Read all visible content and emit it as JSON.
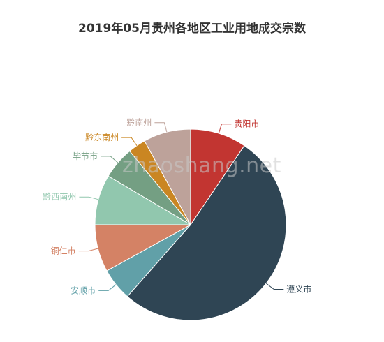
{
  "chart_data": {
    "type": "pie",
    "title": "2019年05月贵州各地区工业用地成交宗数",
    "series": [
      {
        "label": "贵阳市",
        "value": 9.5,
        "color": "#c23531"
      },
      {
        "label": "遵义市",
        "value": 52,
        "color": "#2f4554"
      },
      {
        "label": "安顺市",
        "value": 5.5,
        "color": "#61a0a8"
      },
      {
        "label": "铜仁市",
        "value": 8,
        "color": "#d48265"
      },
      {
        "label": "黔西南州",
        "value": 8.5,
        "color": "#91c7ae"
      },
      {
        "label": "毕节市",
        "value": 5.5,
        "color": "#749f83"
      },
      {
        "label": "黔东南州",
        "value": 3,
        "color": "#ca8622"
      },
      {
        "label": "黔南州",
        "value": 8,
        "color": "#bda29a"
      }
    ]
  },
  "watermark": "zhaoshang.net"
}
